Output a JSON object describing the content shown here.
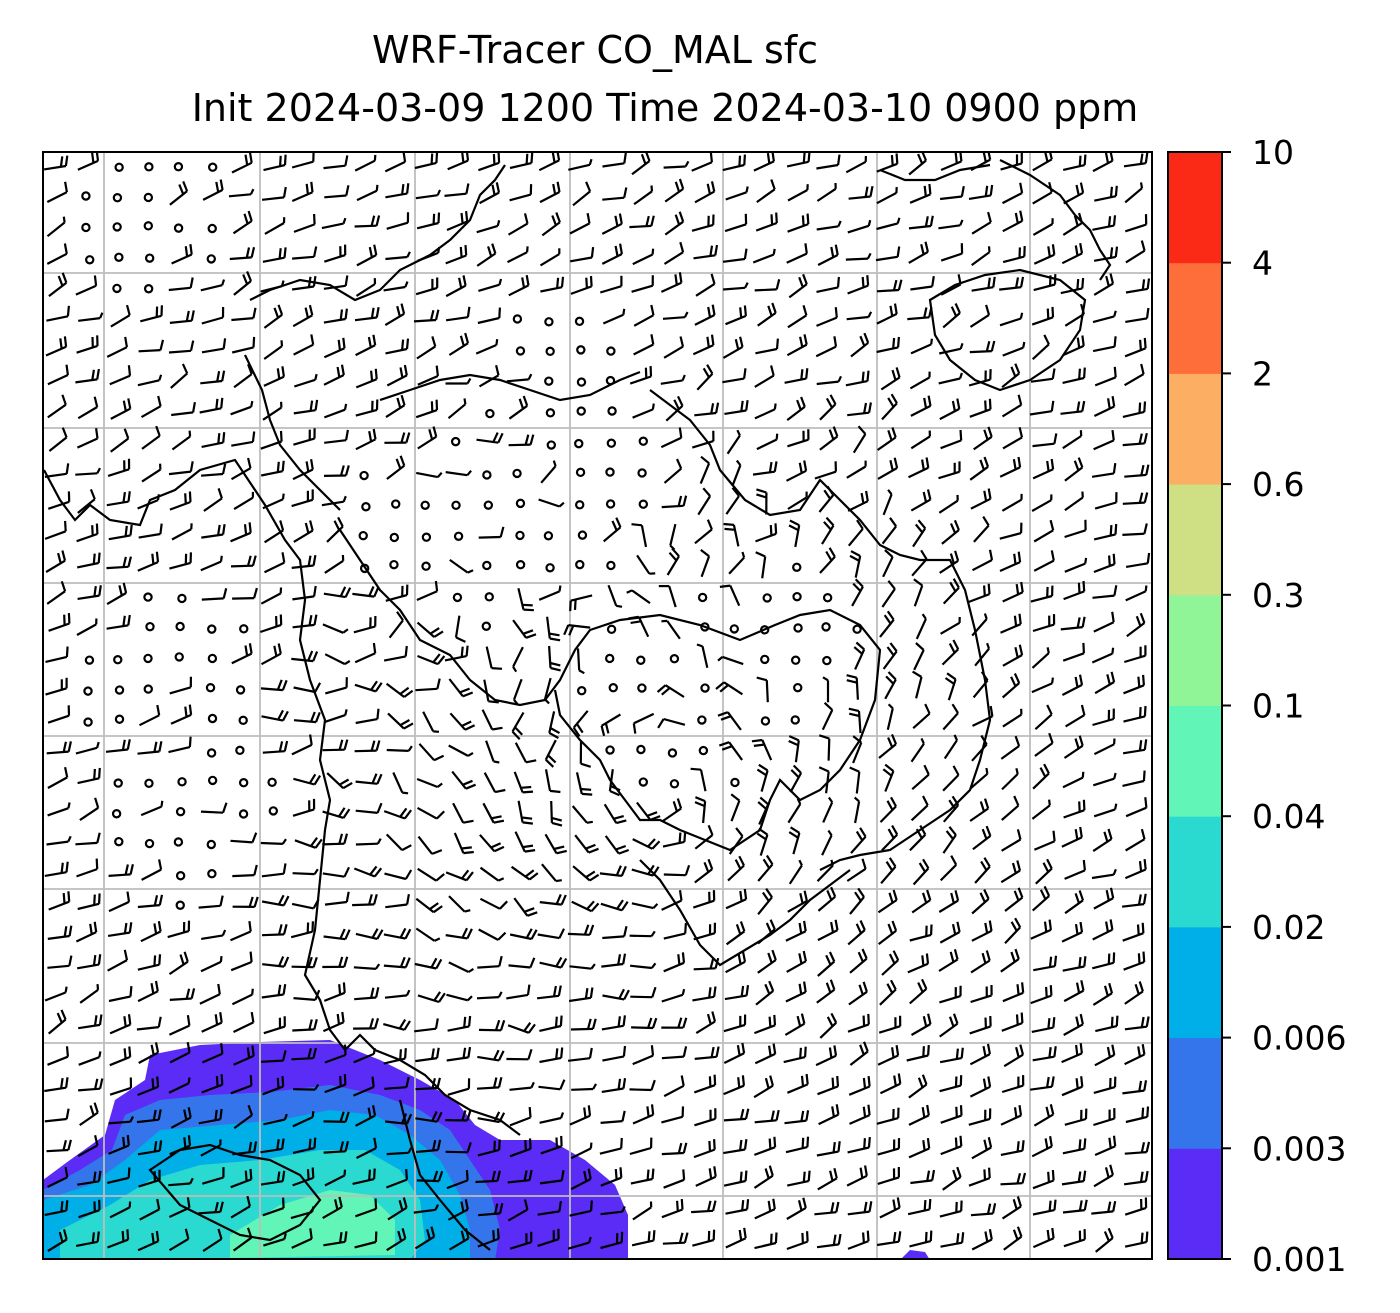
{
  "title": {
    "line1": "WRF-Tracer CO_MAL sfc",
    "line2": "Init 2024-03-09 1200 Time 2024-03-10 0900 ppm"
  },
  "colorbar": {
    "levels": [
      "0.001",
      "0.003",
      "0.006",
      "0.02",
      "0.04",
      "0.1",
      "0.3",
      "0.6",
      "2",
      "4",
      "10"
    ],
    "colors": [
      "#5b2cf5",
      "#3575eb",
      "#00aee8",
      "#2ad9cf",
      "#61f5b7",
      "#8ff596",
      "#cfdf84",
      "#fcae63",
      "#fd6e3b",
      "#fb2a16"
    ]
  },
  "map": {
    "frame_color": "#000000",
    "grid_color": "#bdbdbd",
    "barb_color": "#000000"
  }
}
